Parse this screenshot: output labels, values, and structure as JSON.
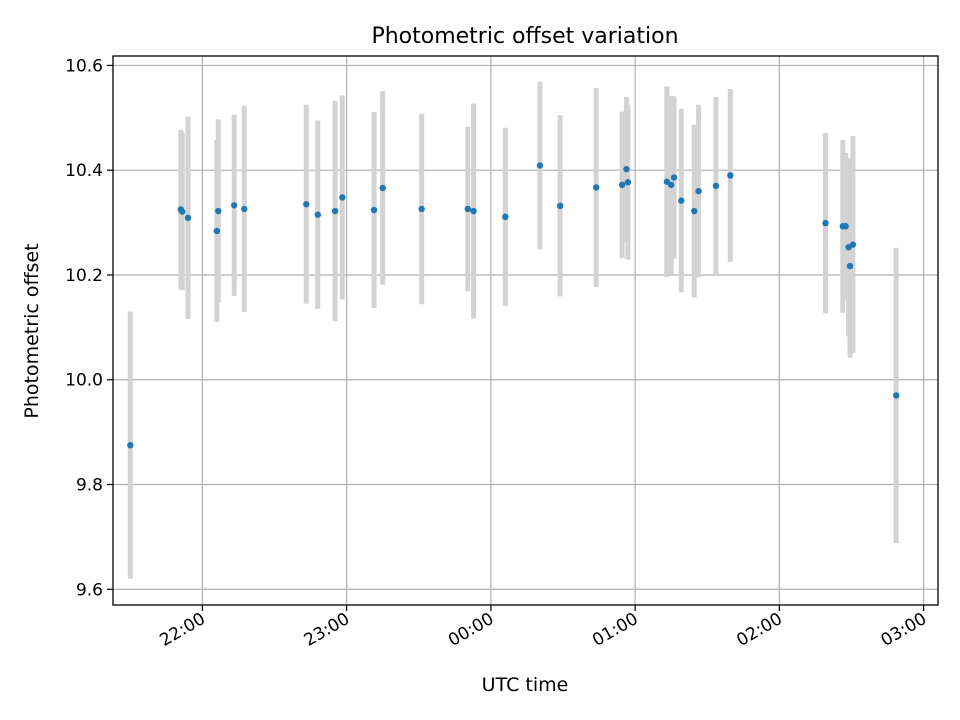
{
  "chart_data": {
    "type": "scatter",
    "title": "Photometric offset variation",
    "xlabel": "UTC time",
    "ylabel": "Photometric offset",
    "x_unit": "UTC hours, elapsed since the 21:00 tick (x = 1 is 22:00, x = 5 is 02:00)",
    "xlim": [
      0.38,
      6.1
    ],
    "ylim": [
      9.57,
      10.618
    ],
    "x_ticks": [
      1,
      2,
      3,
      4,
      5,
      6
    ],
    "x_tick_labels": [
      "22:00",
      "23:00",
      "00:00",
      "01:00",
      "02:00",
      "03:00"
    ],
    "y_ticks": [
      9.6,
      9.8,
      10.0,
      10.2,
      10.4,
      10.6
    ],
    "y_tick_labels": [
      "9.6",
      "9.8",
      "10.0",
      "10.2",
      "10.4",
      "10.6"
    ],
    "grid": true,
    "colors": {
      "point": "#1f77b4",
      "errorbar": "#d3d3d3",
      "grid": "#b0b0b0"
    },
    "points": [
      {
        "x": 0.5,
        "y": 9.875,
        "err": 0.255
      },
      {
        "x": 0.85,
        "y": 10.325,
        "err": 0.152
      },
      {
        "x": 0.86,
        "y": 10.321,
        "err": 0.15
      },
      {
        "x": 0.9,
        "y": 10.309,
        "err": 0.193
      },
      {
        "x": 1.1,
        "y": 10.284,
        "err": 0.174
      },
      {
        "x": 1.11,
        "y": 10.322,
        "err": 0.175
      },
      {
        "x": 1.22,
        "y": 10.333,
        "err": 0.173
      },
      {
        "x": 1.29,
        "y": 10.326,
        "err": 0.197
      },
      {
        "x": 1.72,
        "y": 10.335,
        "err": 0.19
      },
      {
        "x": 1.8,
        "y": 10.315,
        "err": 0.18
      },
      {
        "x": 1.92,
        "y": 10.322,
        "err": 0.21
      },
      {
        "x": 1.97,
        "y": 10.348,
        "err": 0.195
      },
      {
        "x": 2.19,
        "y": 10.324,
        "err": 0.187
      },
      {
        "x": 2.25,
        "y": 10.366,
        "err": 0.185
      },
      {
        "x": 2.52,
        "y": 10.326,
        "err": 0.182
      },
      {
        "x": 2.84,
        "y": 10.326,
        "err": 0.157
      },
      {
        "x": 2.88,
        "y": 10.322,
        "err": 0.205
      },
      {
        "x": 3.1,
        "y": 10.311,
        "err": 0.17
      },
      {
        "x": 3.34,
        "y": 10.409,
        "err": 0.16
      },
      {
        "x": 3.48,
        "y": 10.332,
        "err": 0.173
      },
      {
        "x": 3.73,
        "y": 10.367,
        "err": 0.19
      },
      {
        "x": 3.91,
        "y": 10.372,
        "err": 0.14
      },
      {
        "x": 3.94,
        "y": 10.402,
        "err": 0.138
      },
      {
        "x": 3.95,
        "y": 10.377,
        "err": 0.148
      },
      {
        "x": 4.22,
        "y": 10.378,
        "err": 0.182
      },
      {
        "x": 4.25,
        "y": 10.372,
        "err": 0.17
      },
      {
        "x": 4.27,
        "y": 10.386,
        "err": 0.155
      },
      {
        "x": 4.32,
        "y": 10.342,
        "err": 0.175
      },
      {
        "x": 4.41,
        "y": 10.322,
        "err": 0.165
      },
      {
        "x": 4.44,
        "y": 10.36,
        "err": 0.165
      },
      {
        "x": 4.56,
        "y": 10.37,
        "err": 0.17
      },
      {
        "x": 4.66,
        "y": 10.39,
        "err": 0.165
      },
      {
        "x": 5.32,
        "y": 10.299,
        "err": 0.172
      },
      {
        "x": 5.44,
        "y": 10.293,
        "err": 0.165
      },
      {
        "x": 5.46,
        "y": 10.293,
        "err": 0.14
      },
      {
        "x": 5.48,
        "y": 10.253,
        "err": 0.17
      },
      {
        "x": 5.49,
        "y": 10.217,
        "err": 0.175
      },
      {
        "x": 5.51,
        "y": 10.258,
        "err": 0.207
      },
      {
        "x": 5.81,
        "y": 9.97,
        "err": 0.282
      }
    ]
  }
}
